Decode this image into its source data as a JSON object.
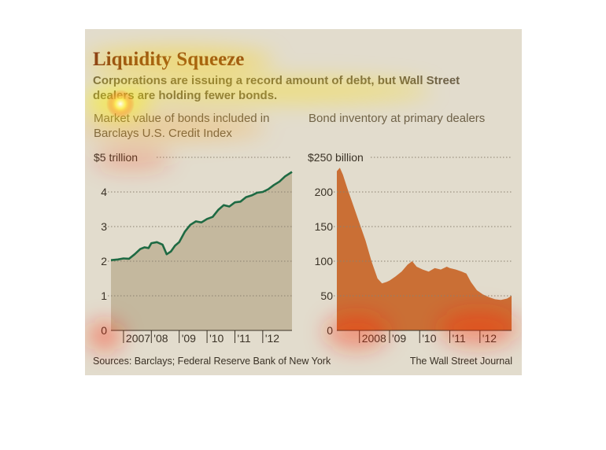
{
  "title": "Liquidity Squeeze",
  "subtitle": "Corporations are issuing a record amount of debt, but Wall Street dealers are holding fewer bonds.",
  "source": "Sources: Barclays; Federal Reserve Bank of New York",
  "credit": "The Wall Street Journal",
  "colors": {
    "line": "#1e6a43",
    "area_left": "#b9ac8e",
    "area_right": "#c8682c",
    "title": "#7a2a16",
    "background": "#e2dccd"
  },
  "chart_data": [
    {
      "type": "area",
      "title": "Market value of bonds included in Barclays U.S. Credit Index",
      "ylabel": "",
      "y_unit_label": "$5 trillion",
      "ylim": [
        0,
        5
      ],
      "yticks": [
        "0",
        "1",
        "2",
        "3",
        "4"
      ],
      "xlim": [
        2006.55,
        2013.05
      ],
      "xticks": [
        "2007",
        "'08",
        "'09",
        "'10",
        "'11",
        "'12"
      ],
      "grid": "dotted horizontal",
      "series": [
        {
          "x": [
            2006.55,
            2006.8,
            2007.0,
            2007.2,
            2007.4,
            2007.6,
            2007.75,
            2007.9,
            2008.0,
            2008.2,
            2008.4,
            2008.55,
            2008.7,
            2008.85,
            2009.0,
            2009.2,
            2009.4,
            2009.6,
            2009.8,
            2010.0,
            2010.2,
            2010.4,
            2010.6,
            2010.8,
            2011.0,
            2011.2,
            2011.4,
            2011.6,
            2011.8,
            2012.0,
            2012.2,
            2012.4,
            2012.6,
            2012.8,
            2013.05
          ],
          "y": [
            2.03,
            2.05,
            2.08,
            2.07,
            2.2,
            2.35,
            2.4,
            2.38,
            2.52,
            2.55,
            2.48,
            2.2,
            2.28,
            2.45,
            2.55,
            2.85,
            3.05,
            3.15,
            3.12,
            3.22,
            3.28,
            3.48,
            3.62,
            3.58,
            3.7,
            3.72,
            3.85,
            3.9,
            3.98,
            4.0,
            4.08,
            4.2,
            4.3,
            4.45,
            4.58
          ]
        }
      ]
    },
    {
      "type": "area",
      "title": "Bond inventory at primary dealers",
      "ylabel": "",
      "y_unit_label": "$250 billion",
      "ylim": [
        0,
        250
      ],
      "yticks": [
        "0",
        "50",
        "100",
        "150",
        "200"
      ],
      "xlim": [
        2007.25,
        2013.05
      ],
      "xticks": [
        "2008",
        "'09",
        "'10",
        "'11",
        "'12"
      ],
      "grid": "dotted horizontal",
      "series": [
        {
          "x": [
            2007.25,
            2007.35,
            2007.45,
            2007.6,
            2007.8,
            2008.0,
            2008.2,
            2008.4,
            2008.6,
            2008.75,
            2008.9,
            2009.0,
            2009.2,
            2009.4,
            2009.6,
            2009.75,
            2009.9,
            2010.1,
            2010.3,
            2010.5,
            2010.7,
            2010.9,
            2011.0,
            2011.2,
            2011.4,
            2011.55,
            2011.7,
            2011.9,
            2012.1,
            2012.3,
            2012.5,
            2012.7,
            2012.9,
            2013.05
          ],
          "y": [
            230,
            235,
            225,
            205,
            180,
            155,
            130,
            100,
            75,
            68,
            70,
            72,
            78,
            85,
            95,
            100,
            92,
            88,
            85,
            90,
            88,
            92,
            90,
            88,
            85,
            82,
            70,
            58,
            52,
            48,
            45,
            44,
            46,
            50
          ]
        }
      ]
    }
  ]
}
